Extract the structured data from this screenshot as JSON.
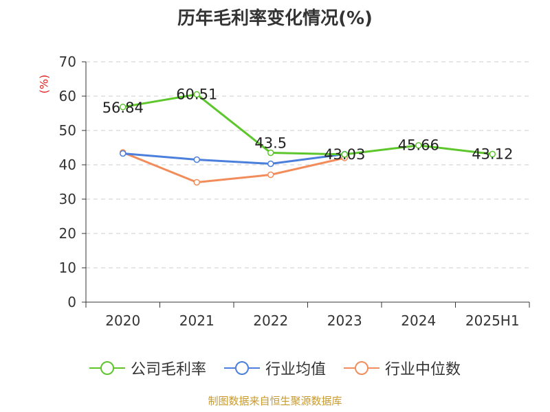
{
  "chart_data": {
    "type": "line",
    "title": "历年毛利率变化情况(%)",
    "ylabel": "(%)",
    "categories": [
      "2020",
      "2021",
      "2022",
      "2023",
      "2024",
      "2025H1"
    ],
    "ylim": [
      0,
      70
    ],
    "yticks": [
      0,
      10,
      20,
      30,
      40,
      50,
      60,
      70
    ],
    "grid": true,
    "legend_position": "bottom",
    "series": [
      {
        "name": "公司毛利率",
        "color": "#5cc62b",
        "values": [
          56.84,
          60.51,
          43.5,
          43.03,
          45.66,
          43.12
        ],
        "labels": [
          "56.84",
          "60.51",
          "43.5",
          "43.03",
          "45.66",
          "43.12"
        ]
      },
      {
        "name": "行业均值",
        "color": "#4a7fdc",
        "values": [
          43.3,
          41.5,
          40.3,
          43.1,
          null,
          null
        ]
      },
      {
        "name": "行业中位数",
        "color": "#f28c5a",
        "values": [
          43.6,
          34.9,
          37.1,
          42.0,
          null,
          null
        ]
      }
    ]
  },
  "footer": "制图数据来自恒生聚源数据库"
}
